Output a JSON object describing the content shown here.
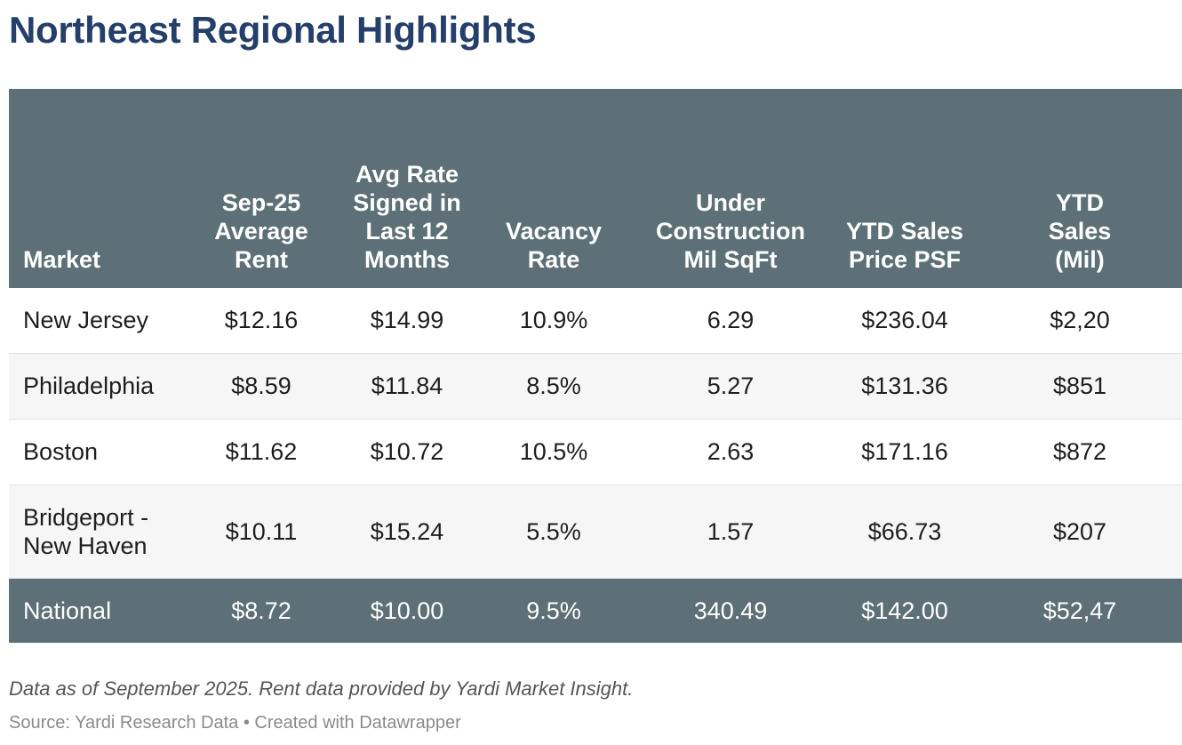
{
  "title": "Northeast Regional Highlights",
  "chart_data": {
    "type": "table",
    "title": "Northeast Regional Highlights",
    "columns": [
      "Market",
      "Sep-25 Average Rent",
      "Avg Rate Signed in Last 12 Months",
      "Vacancy Rate",
      "Under Construction Mil SqFt",
      "YTD Sales Price PSF",
      "YTD Sales (Mil)"
    ],
    "rows": [
      [
        "New Jersey",
        "$12.16",
        "$14.99",
        "10.9%",
        "6.29",
        "$236.04",
        "$2,20"
      ],
      [
        "Philadelphia",
        "$8.59",
        "$11.84",
        "8.5%",
        "5.27",
        "$131.36",
        "$851"
      ],
      [
        "Boston",
        "$11.62",
        "$10.72",
        "10.5%",
        "2.63",
        "$171.16",
        "$872"
      ],
      [
        "Bridgeport - New Haven",
        "$10.11",
        "$15.24",
        "5.5%",
        "1.57",
        "$66.73",
        "$207"
      ]
    ],
    "summary_row": [
      "National",
      "$8.72",
      "$10.00",
      "9.5%",
      "340.49",
      "$142.00",
      "$52,47"
    ]
  },
  "footer": {
    "note": "Data as of September 2025. Rent data provided by Yardi Market Insight.",
    "source": "Source: Yardi Research Data • Created with Datawrapper"
  },
  "colors": {
    "title": "#253f6b",
    "header_bg": "#5d6f77",
    "row_alt_bg": "#f6f6f6"
  }
}
